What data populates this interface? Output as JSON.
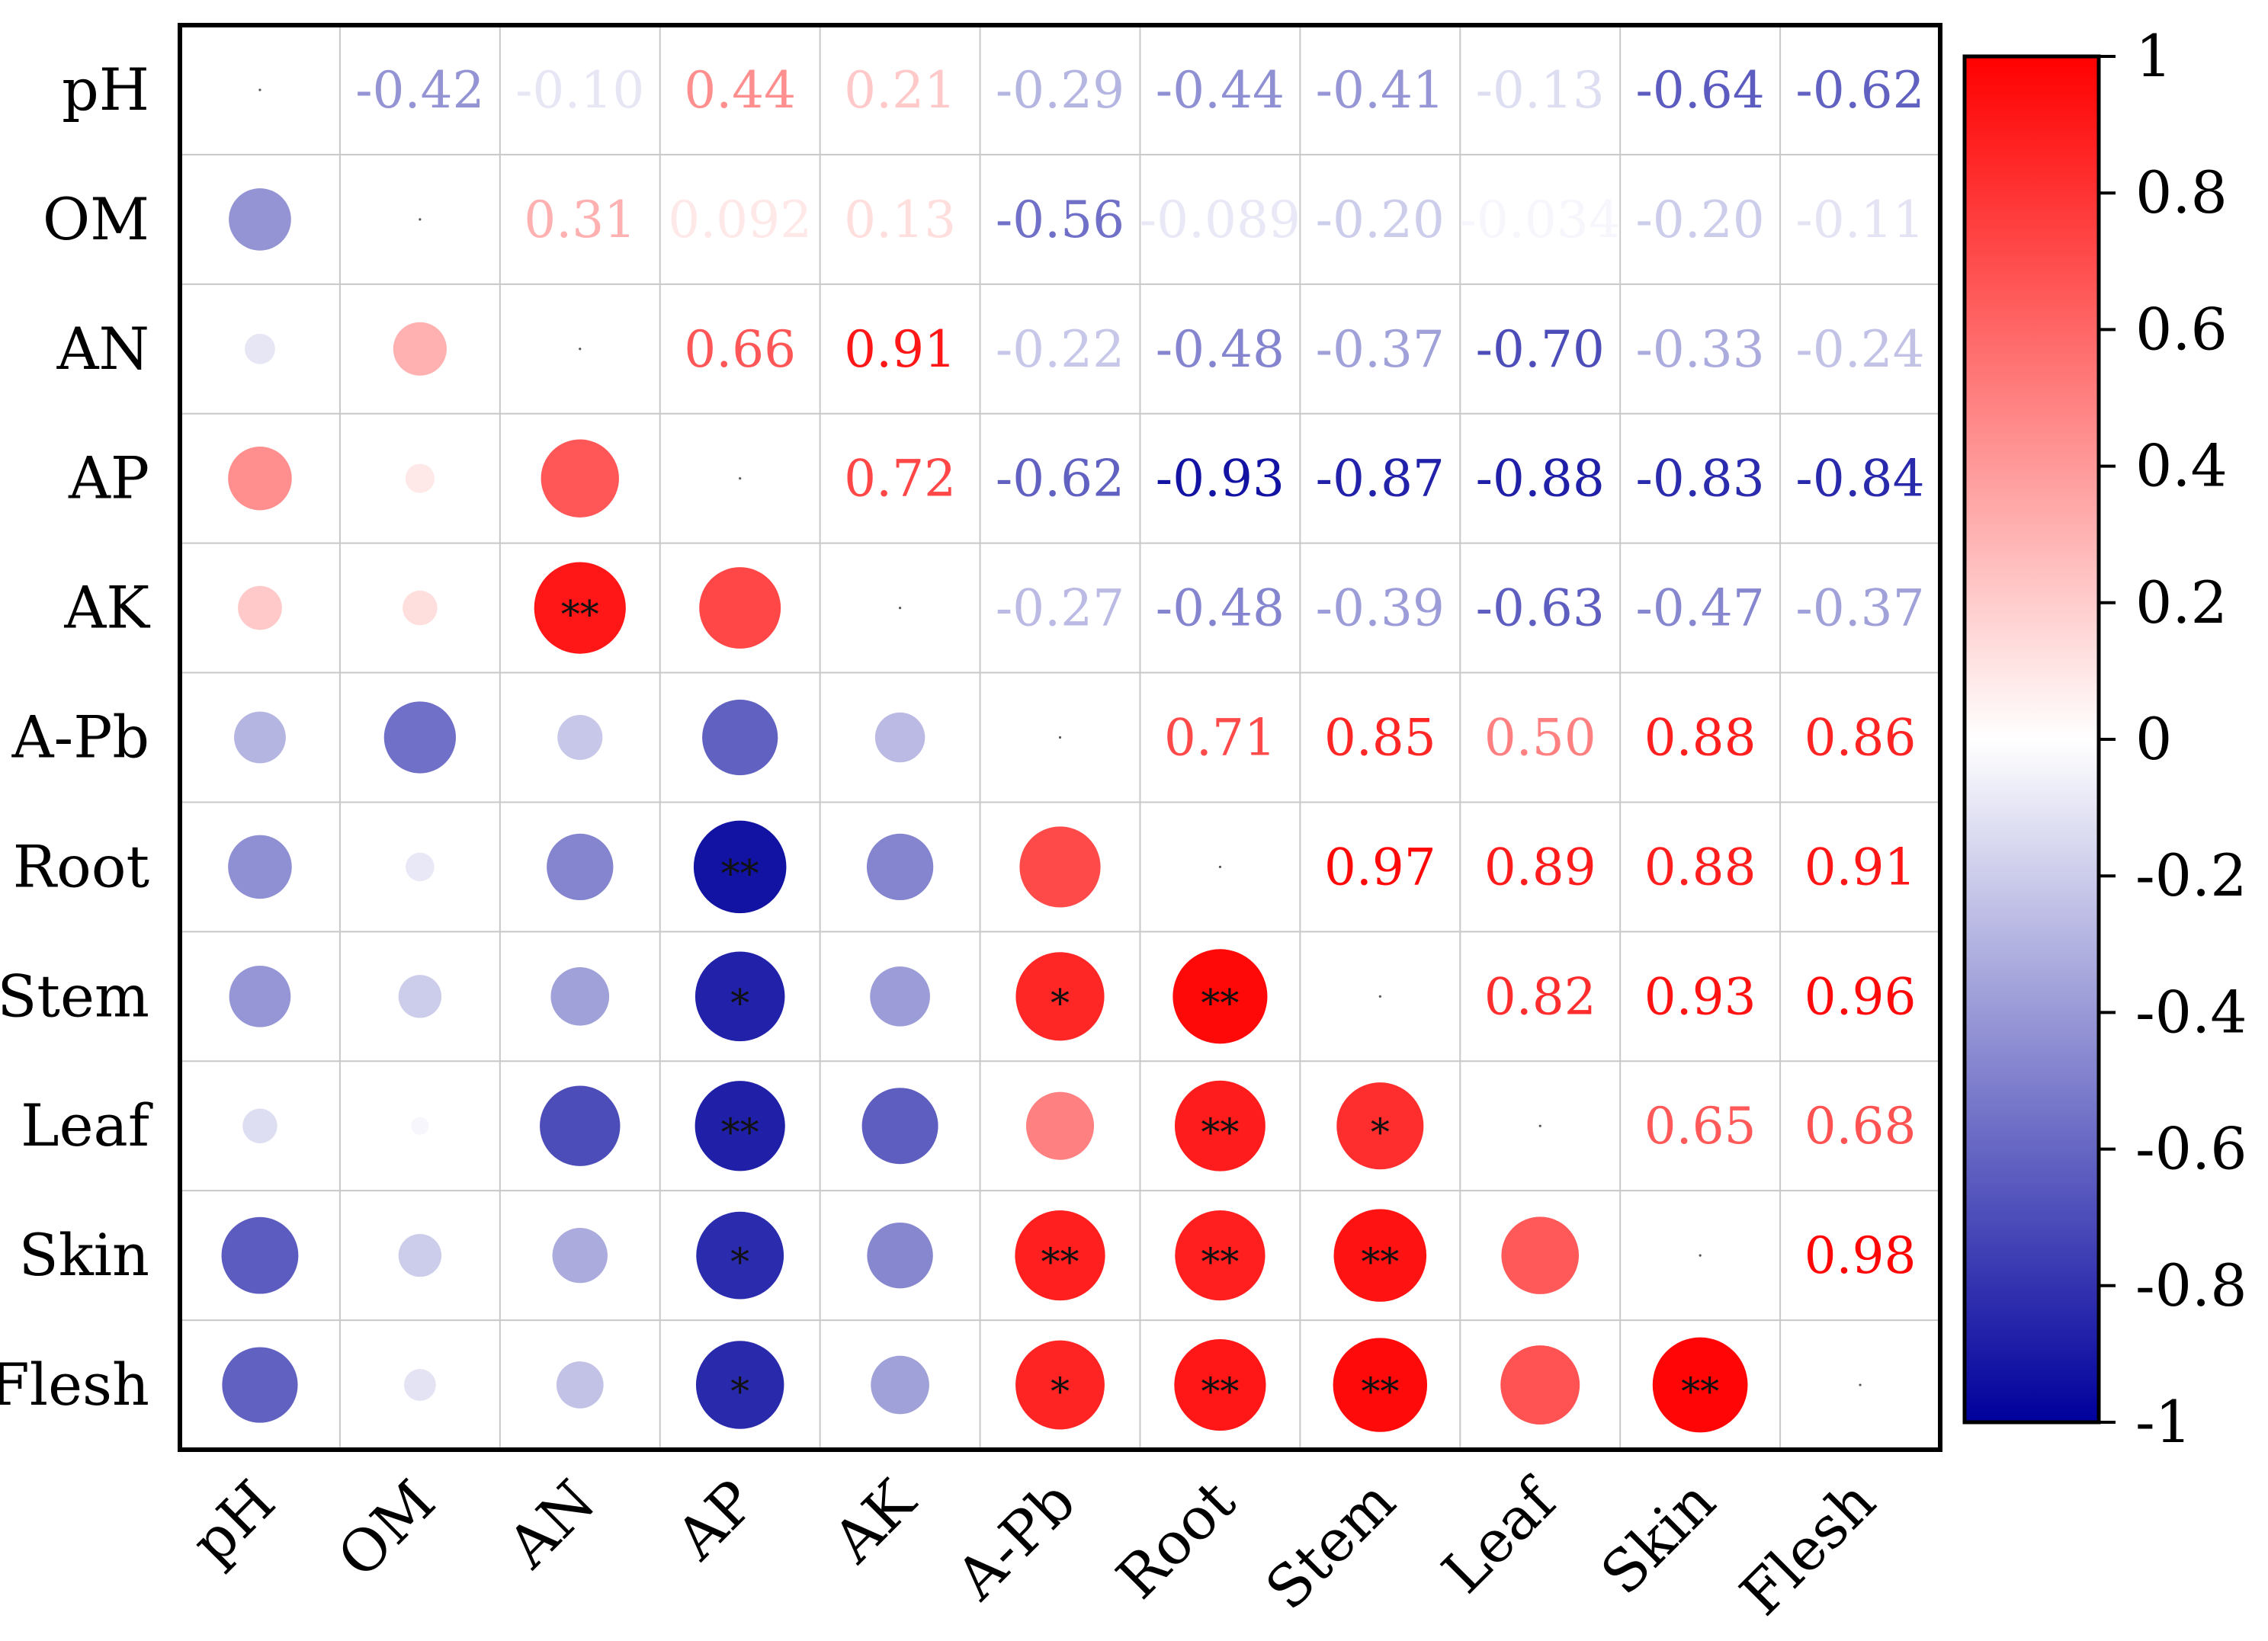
{
  "chart_data": {
    "type": "heatmap",
    "style": "correlation-matrix: circles in lower triangle, coefficient labels in upper triangle",
    "variables": [
      "pH",
      "OM",
      "AN",
      "AP",
      "AK",
      "A-Pb",
      "Root",
      "Stem",
      "Leaf",
      "Skin",
      "Flesh"
    ],
    "matrix": [
      [
        1,
        -0.42,
        -0.1,
        0.44,
        0.21,
        -0.29,
        -0.44,
        -0.41,
        -0.13,
        -0.64,
        -0.62
      ],
      [
        -0.42,
        1,
        0.31,
        0.092,
        0.13,
        -0.56,
        -0.089,
        -0.2,
        -0.034,
        -0.2,
        -0.11
      ],
      [
        -0.1,
        0.31,
        1,
        0.66,
        0.91,
        -0.22,
        -0.48,
        -0.37,
        -0.7,
        -0.33,
        -0.24
      ],
      [
        0.44,
        0.092,
        0.66,
        1,
        0.72,
        -0.62,
        -0.93,
        -0.87,
        -0.88,
        -0.83,
        -0.84
      ],
      [
        0.21,
        0.13,
        0.91,
        0.72,
        1,
        -0.27,
        -0.48,
        -0.39,
        -0.63,
        -0.47,
        -0.37
      ],
      [
        -0.29,
        -0.56,
        -0.22,
        -0.62,
        -0.27,
        1,
        0.71,
        0.85,
        0.5,
        0.88,
        0.86
      ],
      [
        -0.44,
        -0.089,
        -0.48,
        -0.93,
        -0.48,
        0.71,
        1,
        0.97,
        0.89,
        0.88,
        0.91
      ],
      [
        -0.41,
        -0.2,
        -0.37,
        -0.87,
        -0.39,
        0.85,
        0.97,
        1,
        0.82,
        0.93,
        0.96
      ],
      [
        -0.13,
        -0.034,
        -0.7,
        -0.88,
        -0.63,
        0.5,
        0.89,
        0.82,
        1,
        0.65,
        0.68
      ],
      [
        -0.64,
        -0.2,
        -0.33,
        -0.83,
        -0.47,
        0.88,
        0.88,
        0.93,
        0.65,
        1,
        0.98
      ],
      [
        -0.62,
        -0.11,
        -0.24,
        -0.84,
        -0.37,
        0.86,
        0.91,
        0.96,
        0.68,
        0.98,
        1
      ]
    ],
    "upper_labels": [
      [
        null,
        "-0.42",
        "-0.10",
        "0.44",
        "0.21",
        "-0.29",
        "-0.44",
        "-0.41",
        "-0.13",
        "-0.64",
        "-0.62"
      ],
      [
        null,
        null,
        "0.31",
        "0.092",
        "0.13",
        "-0.56",
        "-0.089",
        "-0.20",
        "-0.034",
        "-0.20",
        "-0.11"
      ],
      [
        null,
        null,
        null,
        "0.66",
        "0.91",
        "-0.22",
        "-0.48",
        "-0.37",
        "-0.70",
        "-0.33",
        "-0.24"
      ],
      [
        null,
        null,
        null,
        null,
        "0.72",
        "-0.62",
        "-0.93",
        "-0.87",
        "-0.88",
        "-0.83",
        "-0.84"
      ],
      [
        null,
        null,
        null,
        null,
        null,
        "-0.27",
        "-0.48",
        "-0.39",
        "-0.63",
        "-0.47",
        "-0.37"
      ],
      [
        null,
        null,
        null,
        null,
        null,
        null,
        "0.71",
        "0.85",
        "0.50",
        "0.88",
        "0.86"
      ],
      [
        null,
        null,
        null,
        null,
        null,
        null,
        null,
        "0.97",
        "0.89",
        "0.88",
        "0.91"
      ],
      [
        null,
        null,
        null,
        null,
        null,
        null,
        null,
        null,
        "0.82",
        "0.93",
        "0.96"
      ],
      [
        null,
        null,
        null,
        null,
        null,
        null,
        null,
        null,
        null,
        "0.65",
        "0.68"
      ],
      [
        null,
        null,
        null,
        null,
        null,
        null,
        null,
        null,
        null,
        null,
        "0.98"
      ],
      [
        null,
        null,
        null,
        null,
        null,
        null,
        null,
        null,
        null,
        null,
        null
      ]
    ],
    "significance": [
      {
        "row": "AK",
        "col": "AN",
        "mark": "**"
      },
      {
        "row": "Root",
        "col": "AP",
        "mark": "**"
      },
      {
        "row": "Stem",
        "col": "AP",
        "mark": "*"
      },
      {
        "row": "Stem",
        "col": "A-Pb",
        "mark": "*"
      },
      {
        "row": "Stem",
        "col": "Root",
        "mark": "**"
      },
      {
        "row": "Leaf",
        "col": "AP",
        "mark": "**"
      },
      {
        "row": "Leaf",
        "col": "Root",
        "mark": "**"
      },
      {
        "row": "Leaf",
        "col": "Stem",
        "mark": "*"
      },
      {
        "row": "Skin",
        "col": "AP",
        "mark": "*"
      },
      {
        "row": "Skin",
        "col": "A-Pb",
        "mark": "**"
      },
      {
        "row": "Skin",
        "col": "Root",
        "mark": "**"
      },
      {
        "row": "Skin",
        "col": "Stem",
        "mark": "**"
      },
      {
        "row": "Flesh",
        "col": "AP",
        "mark": "*"
      },
      {
        "row": "Flesh",
        "col": "A-Pb",
        "mark": "*"
      },
      {
        "row": "Flesh",
        "col": "Root",
        "mark": "**"
      },
      {
        "row": "Flesh",
        "col": "Stem",
        "mark": "**"
      },
      {
        "row": "Flesh",
        "col": "Skin",
        "mark": "**"
      }
    ],
    "colorbar": {
      "range": [
        -1,
        1
      ],
      "ticks": [
        1,
        0.8,
        0.6,
        0.4,
        0.2,
        0,
        -0.2,
        -0.4,
        -0.6,
        -0.8,
        -1
      ],
      "tick_labels": [
        "1",
        "0.8",
        "0.6",
        "0.4",
        "0.2",
        "0",
        "-0.2",
        "-0.4",
        "-0.6",
        "-0.8",
        "-1"
      ],
      "colors": {
        "negative": "#00009c",
        "zero": "#ffffff",
        "positive": "#ff0000"
      }
    },
    "title": "",
    "xlabel": "",
    "ylabel": "",
    "grid": true,
    "legend": "right"
  }
}
